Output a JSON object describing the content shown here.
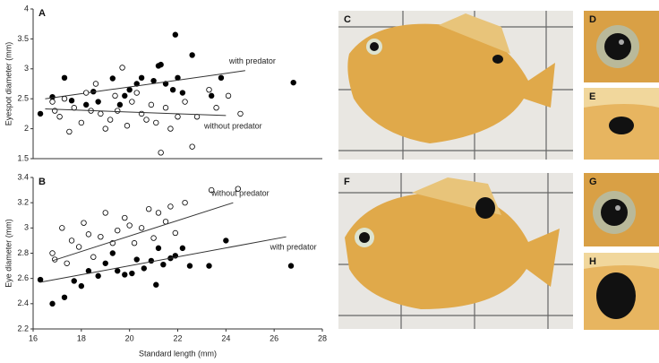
{
  "chart_data": [
    {
      "type": "scatter",
      "title": "A",
      "y_label": "Eyespot diameter (mm)",
      "xlim": [
        16,
        28
      ],
      "ylim": [
        1.5,
        4
      ],
      "yticks": [
        1.5,
        2,
        2.5,
        3,
        3.5,
        4
      ],
      "series": [
        {
          "name": "with predator",
          "color": "#000000",
          "filled": true,
          "x": [
            16.3,
            16.8,
            17.3,
            17.6,
            18.2,
            18.5,
            18.7,
            19.3,
            19.6,
            19.8,
            20.0,
            20.3,
            20.5,
            21.0,
            21.2,
            21.3,
            21.5,
            21.8,
            21.9,
            22.0,
            22.2,
            22.6,
            23.4,
            23.8,
            26.8
          ],
          "values": [
            2.25,
            2.53,
            2.85,
            2.47,
            2.4,
            2.62,
            2.45,
            2.84,
            2.4,
            2.55,
            2.65,
            2.75,
            2.85,
            2.8,
            3.05,
            3.07,
            2.75,
            2.65,
            3.57,
            2.85,
            2.6,
            3.23,
            2.55,
            2.85,
            2.77
          ],
          "fit": {
            "x": [
              16.5,
              24.8
            ],
            "y": [
              2.5,
              2.97
            ]
          }
        },
        {
          "name": "without predator",
          "color": "#000000",
          "filled": false,
          "x": [
            16.8,
            16.9,
            17.1,
            17.3,
            17.5,
            17.7,
            18.0,
            18.2,
            18.4,
            18.6,
            18.8,
            19.0,
            19.2,
            19.4,
            19.5,
            19.7,
            19.9,
            20.1,
            20.3,
            20.5,
            20.7,
            20.9,
            21.1,
            21.3,
            21.5,
            21.7,
            22.0,
            22.3,
            22.6,
            22.8,
            23.3,
            23.6,
            24.1,
            24.6
          ],
          "values": [
            2.45,
            2.3,
            2.2,
            2.5,
            1.95,
            2.35,
            2.1,
            2.6,
            2.3,
            2.75,
            2.25,
            2.0,
            2.15,
            2.55,
            2.3,
            3.02,
            2.05,
            2.45,
            2.6,
            2.25,
            2.15,
            2.4,
            2.1,
            1.6,
            2.35,
            2.0,
            2.2,
            2.45,
            1.7,
            2.2,
            2.65,
            2.35,
            2.55,
            2.25
          ],
          "fit": {
            "x": [
              16.5,
              24.0
            ],
            "y": [
              2.33,
              2.22
            ]
          }
        }
      ]
    },
    {
      "type": "scatter",
      "title": "B",
      "y_label": "Eye diameter (mm)",
      "x_label": "Standard length (mm)",
      "xlim": [
        16,
        28
      ],
      "xticks": [
        16,
        18,
        20,
        22,
        24,
        26,
        28
      ],
      "ylim": [
        2.2,
        3.4
      ],
      "yticks": [
        2.2,
        2.4,
        2.6,
        2.8,
        3,
        3.2,
        3.4
      ],
      "series": [
        {
          "name": "without predator",
          "color": "#000000",
          "filled": false,
          "x": [
            16.8,
            16.9,
            17.2,
            17.4,
            17.6,
            17.9,
            18.1,
            18.3,
            18.5,
            18.8,
            19.0,
            19.3,
            19.5,
            19.8,
            20.0,
            20.2,
            20.5,
            20.8,
            21.0,
            21.2,
            21.5,
            21.7,
            21.9,
            22.3,
            23.4,
            24.5
          ],
          "values": [
            2.8,
            2.75,
            3.0,
            2.72,
            2.9,
            2.85,
            3.04,
            2.95,
            2.77,
            2.93,
            3.12,
            2.88,
            2.98,
            3.08,
            3.02,
            2.88,
            3.0,
            3.15,
            2.92,
            3.12,
            3.05,
            3.17,
            2.96,
            3.2,
            3.3,
            3.31
          ],
          "fit": {
            "x": [
              16.8,
              24.3
            ],
            "y": [
              2.74,
              3.2
            ]
          }
        },
        {
          "name": "with predator",
          "color": "#000000",
          "filled": true,
          "x": [
            16.3,
            16.8,
            17.3,
            17.7,
            18.0,
            18.3,
            18.7,
            19.0,
            19.3,
            19.5,
            19.8,
            20.1,
            20.3,
            20.6,
            20.9,
            21.1,
            21.2,
            21.4,
            21.7,
            21.9,
            22.2,
            22.5,
            23.3,
            24.0,
            26.7
          ],
          "values": [
            2.59,
            2.4,
            2.45,
            2.58,
            2.54,
            2.66,
            2.62,
            2.72,
            2.8,
            2.66,
            2.63,
            2.64,
            2.75,
            2.68,
            2.74,
            2.55,
            2.84,
            2.71,
            2.76,
            2.78,
            2.84,
            2.7,
            2.7,
            2.9,
            2.7
          ],
          "fit": {
            "x": [
              16.3,
              26.5
            ],
            "y": [
              2.57,
              2.93
            ]
          }
        }
      ]
    }
  ],
  "photos": {
    "labels": [
      "C",
      "D",
      "E",
      "F",
      "G",
      "H"
    ]
  }
}
